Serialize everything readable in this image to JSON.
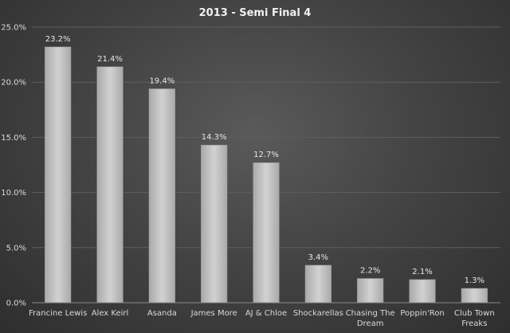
{
  "chart_data": {
    "type": "bar",
    "title": "2013 - Semi Final 4",
    "xlabel": "",
    "ylabel": "",
    "ylim": [
      0,
      25
    ],
    "y_ticks": [
      "0.0%",
      "5.0%",
      "10.0%",
      "15.0%",
      "20.0%",
      "25.0%"
    ],
    "y_tick_values": [
      0,
      5,
      10,
      15,
      20,
      25
    ],
    "grid": true,
    "legend": "none",
    "categories": [
      [
        "Francine Lewis"
      ],
      [
        "Alex Keirl"
      ],
      [
        "Asanda"
      ],
      [
        "James More"
      ],
      [
        "AJ & Chloe"
      ],
      [
        "Shockarellas"
      ],
      [
        "Chasing The",
        "Dream"
      ],
      [
        "Poppin'Ron"
      ],
      [
        "Club Town",
        "Freaks"
      ]
    ],
    "values": [
      23.2,
      21.4,
      19.4,
      14.3,
      12.7,
      3.4,
      2.2,
      2.1,
      1.3
    ],
    "data_labels": [
      "23.2%",
      "21.4%",
      "19.4%",
      "14.3%",
      "12.7%",
      "3.4%",
      "2.2%",
      "2.1%",
      "1.3%"
    ],
    "bar_color": "#c8c8c8"
  }
}
